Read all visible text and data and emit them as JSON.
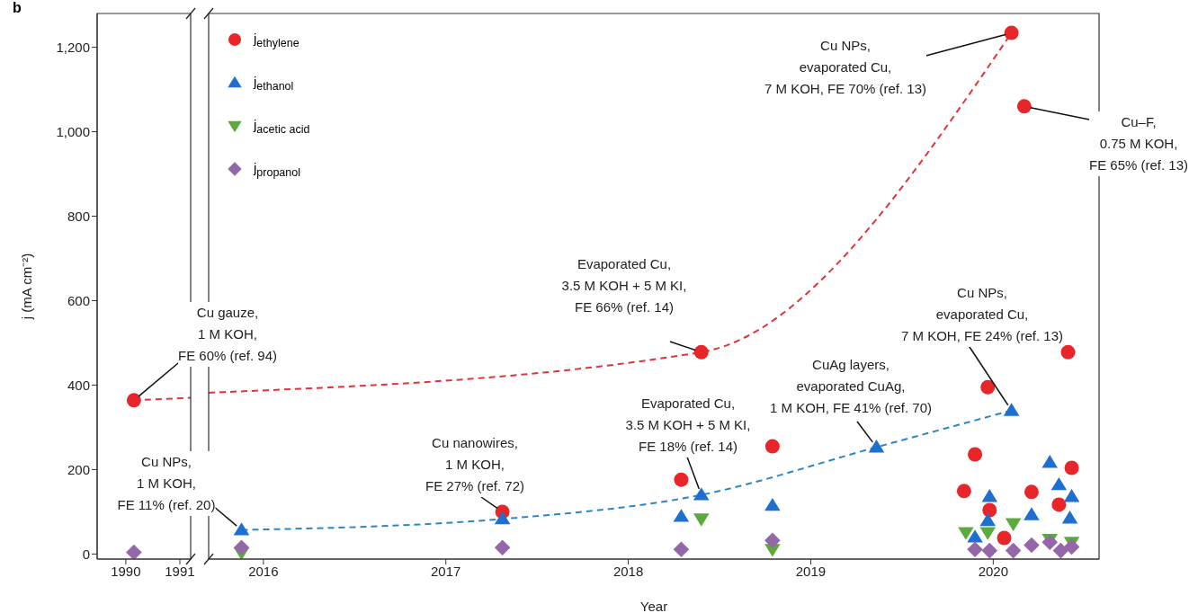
{
  "chart_data": [
    {
      "type": "scatter",
      "title": "b",
      "ylabel": "j (mA cm⁻²)",
      "xlim": [
        1989.47,
        1991.2
      ],
      "xticks": [
        1990,
        1991
      ],
      "ylim": [
        -12,
        1280
      ],
      "yticks": [
        0,
        200,
        400,
        600,
        800,
        {
          "value": 1000,
          "label": "1,000"
        },
        {
          "value": 1200,
          "label": "1,200"
        }
      ],
      "grid": false,
      "legend": false,
      "series": [
        {
          "type": "line",
          "color": "#e0343a",
          "line_style": "dashed",
          "marker": "none",
          "x": [
            1990.15,
            1991.2
          ],
          "values": [
            364,
            370
          ]
        },
        {
          "color": "#e8262a",
          "marker": "circle",
          "x": [
            1990.15
          ],
          "values": [
            364
          ]
        },
        {
          "color": "#9467a8",
          "marker": "diamond",
          "x": [
            1990.15
          ],
          "values": [
            4
          ]
        }
      ],
      "annotations": [
        {
          "text": "Cu gauze,\n1 M KOH,\nFE 60% (ref. 94)",
          "x": 1990.15,
          "y": 364
        }
      ]
    },
    {
      "type": "scatter",
      "xlabel": "Year",
      "xlim": [
        2015.7,
        2020.58
      ],
      "xticks": [
        2016,
        2017,
        2018,
        2019,
        2020
      ],
      "ylim": [
        -12,
        1280
      ],
      "tick_labels": "x",
      "legend": "top left",
      "series": [
        {
          "type": "line",
          "color": "#e0343a",
          "line_style": "dashed",
          "marker": "none",
          "x": [
            2015.7,
            2018.4,
            2020.1
          ],
          "values": [
            382,
            478,
            1234
          ]
        },
        {
          "type": "line",
          "color": "#2e86c1",
          "line_style": "dashed",
          "marker": "none",
          "x": [
            2015.88,
            2017.31,
            2018.4,
            2019.36,
            2020.1
          ],
          "values": [
            57,
            83,
            140,
            253,
            340
          ]
        },
        {
          "name": "j$_{ethylene}$",
          "color": "#e8262a",
          "marker": "circle",
          "x": [
            2017.31,
            2018.29,
            2018.4,
            2018.79,
            2019.84,
            2019.9,
            2019.97,
            2019.98,
            2020.06,
            2020.1,
            2020.17,
            2020.21,
            2020.36,
            2020.41,
            2020.43
          ],
          "values": [
            100,
            176,
            478,
            255,
            149,
            236,
            395,
            104,
            38,
            1234,
            1060,
            147,
            117,
            478,
            204
          ]
        },
        {
          "name": "j$_{ethanol}$",
          "color": "#1f6fd1",
          "marker": "triangle",
          "x": [
            2015.88,
            2017.31,
            2018.29,
            2018.4,
            2018.79,
            2019.36,
            2019.9,
            2019.97,
            2019.98,
            2020.1,
            2020.21,
            2020.31,
            2020.36,
            2020.42,
            2020.43
          ],
          "values": [
            57,
            83,
            89,
            140,
            115,
            253,
            40,
            79,
            136,
            340,
            93,
            217,
            164,
            85,
            136
          ]
        },
        {
          "name": "j$_{acetic acid}$",
          "color": "#5aab3c",
          "marker": "triangle-down",
          "x": [
            2015.88,
            2018.4,
            2018.79,
            2019.85,
            2019.97,
            2020.11,
            2020.31,
            2020.43
          ],
          "values": [
            3,
            83,
            11,
            51,
            51,
            72,
            35,
            28
          ]
        },
        {
          "name": "j$_{propanol}$",
          "color": "#9467a8",
          "marker": "diamond",
          "x": [
            2015.88,
            2017.31,
            2018.29,
            2018.79,
            2019.9,
            2019.98,
            2020.11,
            2020.21,
            2020.31,
            2020.37,
            2020.43
          ],
          "values": [
            15,
            15,
            11,
            32,
            11,
            8,
            8,
            21,
            28,
            8,
            17
          ]
        }
      ],
      "annotations": [
        {
          "text": "Cu NPs,\n1 M KOH,\nFE 11% (ref. 20)",
          "x": 2015.88,
          "y": 57
        },
        {
          "text": "Cu nanowires,\n1 M KOH,\nFE 27% (ref. 72)",
          "x": 2017.31,
          "y": 100
        },
        {
          "text": "Evaporated Cu,\n3.5 M KOH + 5 M KI,\nFE 66% (ref. 14)",
          "x": 2018.4,
          "y": 478
        },
        {
          "text": "Evaporated Cu,\n3.5 M KOH + 5 M KI,\nFE 18% (ref. 14)",
          "x": 2018.4,
          "y": 140
        },
        {
          "text": "CuAg layers,\nevaporated CuAg,\n1 M KOH, FE 41% (ref. 70)",
          "x": 2019.36,
          "y": 253
        },
        {
          "text": "Cu NPs,\nevaporated Cu,\n7 M KOH, FE 24% (ref. 13)",
          "x": 2020.1,
          "y": 340
        },
        {
          "text": "Cu NPs,\nevaporated Cu,\n7 M KOH, FE 70% (ref. 13)",
          "x": 2020.1,
          "y": 1234
        },
        {
          "text": "Cu–F,\n0.75 M KOH,\nFE 65% (ref. 13)",
          "x": 2020.17,
          "y": 1060
        }
      ]
    }
  ]
}
